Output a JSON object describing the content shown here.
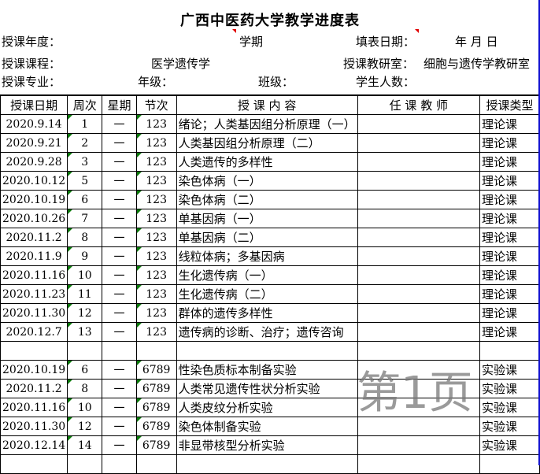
{
  "title": "广西中医药大学教学进度表",
  "info": {
    "year_label": "授课年度：",
    "term_label": "学期",
    "fill_date_label": "填表日期：",
    "date_units": "年  月   日",
    "course_label": "授课课程：",
    "course_value": "医学遗传学",
    "dept_label": "授课教研室：",
    "dept_value": "细胞与遗传学教研室",
    "major_label": "授课专业：",
    "grade_label": "年级：",
    "class_label": "班级：",
    "students_label": "学生人数："
  },
  "headers": [
    "授课日期",
    "周次",
    "星期",
    "节次",
    "授  课   内  容",
    "任 课 教 师",
    "授课类型"
  ],
  "rows": [
    [
      "2020.9.14",
      "1",
      "一",
      "123",
      "绪论；人类基因组分析原理（一）",
      "",
      "理论课"
    ],
    [
      "2020.9.21",
      "2",
      "一",
      "123",
      "人类基因组分析原理（二）",
      "",
      "理论课"
    ],
    [
      "2020.9.28",
      "3",
      "一",
      "123",
      "人类遗传的多样性",
      "",
      "理论课"
    ],
    [
      "2020.10.12",
      "5",
      "一",
      "123",
      "染色体病（一）",
      "",
      "理论课"
    ],
    [
      "2020.10.19",
      "6",
      "一",
      "123",
      "染色体病（二）",
      "",
      "理论课"
    ],
    [
      "2020.10.26",
      "7",
      "一",
      "123",
      "单基因病（一）",
      "",
      "理论课"
    ],
    [
      "2020.11.2",
      "8",
      "一",
      "123",
      "单基因病（二）",
      "",
      "理论课"
    ],
    [
      "2020.11.9",
      "9",
      "一",
      "123",
      "线粒体病；多基因病",
      "",
      "理论课"
    ],
    [
      "2020.11.16",
      "10",
      "一",
      "123",
      "生化遗传病（一）",
      "",
      "理论课"
    ],
    [
      "2020.11.23",
      "11",
      "一",
      "123",
      "生化遗传病（二）",
      "",
      "理论课"
    ],
    [
      "2020.11.30",
      "12",
      "一",
      "123",
      "群体的遗传多样性",
      "",
      "理论课"
    ],
    [
      "2020.12.7",
      "13",
      "一",
      "123",
      "遗传病的诊断、治疗；遗传咨询",
      "",
      "理论课"
    ],
    [
      "",
      "",
      "",
      "",
      "",
      "",
      ""
    ],
    [
      "2020.10.19",
      "6",
      "一",
      "6789",
      "性染色质标本制备实验",
      "",
      "实验课"
    ],
    [
      "2020.11.2",
      "8",
      "一",
      "6789",
      "人类常见遗传性状分析实验",
      "",
      "实验课"
    ],
    [
      "2020.11.16",
      "10",
      "一",
      "6789",
      "人类皮纹分析实验",
      "",
      "实验课"
    ],
    [
      "2020.11.30",
      "12",
      "一",
      "6789",
      "染色体制备实验",
      "",
      "实验课"
    ],
    [
      "2020.12.14",
      "14",
      "一",
      "6789",
      "非显带核型分析实验",
      "",
      "实验课"
    ],
    [
      "",
      "",
      "",
      "",
      "",
      "",
      ""
    ]
  ],
  "watermark": "第 1 页"
}
